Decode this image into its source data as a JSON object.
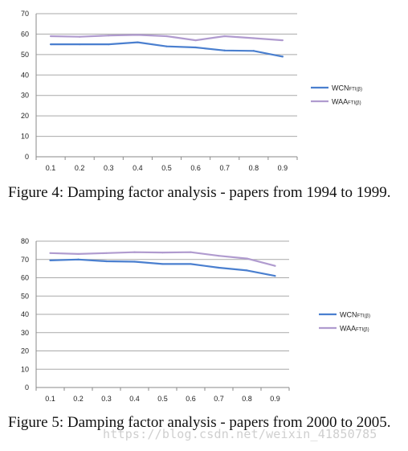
{
  "chart_data": [
    {
      "type": "line",
      "categories": [
        "0.1",
        "0.2",
        "0.3",
        "0.4",
        "0.5",
        "0.6",
        "0.7",
        "0.8",
        "0.9"
      ],
      "yticks": [
        "0",
        "10",
        "20",
        "30",
        "40",
        "50",
        "60",
        "70"
      ],
      "ylim": [
        0,
        70
      ],
      "grid": true,
      "legend_position": "right",
      "series": [
        {
          "name": "WCN",
          "subscript": "FTI(β)",
          "color": "#4a7fcf",
          "values": [
            55,
            55,
            55,
            56,
            54,
            53.5,
            52,
            51.8,
            49
          ]
        },
        {
          "name": "WAA",
          "subscript": "FTI(β)",
          "color": "#b09bcf",
          "values": [
            59,
            58.7,
            59.3,
            59.6,
            59,
            57,
            59,
            58,
            57
          ]
        }
      ]
    },
    {
      "type": "line",
      "categories": [
        "0.1",
        "0.2",
        "0.3",
        "0.4",
        "0.5",
        "0.6",
        "0.7",
        "0.8",
        "0.9"
      ],
      "yticks": [
        "0",
        "10",
        "20",
        "30",
        "40",
        "50",
        "60",
        "70",
        "80"
      ],
      "ylim": [
        0,
        80
      ],
      "grid": true,
      "legend_position": "right",
      "series": [
        {
          "name": "WCN",
          "subscript": "FTI(β)",
          "color": "#4a7fcf",
          "values": [
            69.5,
            70,
            69,
            68.8,
            67.5,
            67.5,
            65.5,
            64,
            61
          ]
        },
        {
          "name": "WAA",
          "subscript": "FTI(β)",
          "color": "#b09bcf",
          "values": [
            73.5,
            73,
            73.5,
            74,
            73.8,
            74,
            72,
            70.5,
            66.5
          ]
        }
      ]
    }
  ],
  "captions": {
    "fig4": "Figure 4:  Damping factor analysis - papers from 1994 to 1999.",
    "fig5": "Figure 5:  Damping factor analysis - papers from 2000 to 2005."
  },
  "watermark": "https://blog.csdn.net/weixin_41850785"
}
